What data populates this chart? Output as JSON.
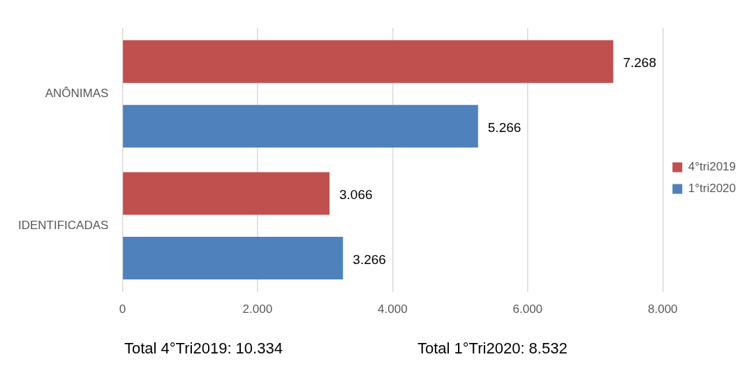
{
  "chart_data": {
    "type": "bar",
    "orientation": "horizontal",
    "categories": [
      "ANÔNIMAS",
      "IDENTIFICADAS"
    ],
    "series": [
      {
        "name": "4°tri2019",
        "color": "#c0504d",
        "values": [
          7268,
          3066
        ],
        "value_labels": [
          "7.268",
          "3.066"
        ]
      },
      {
        "name": "1°tri2020",
        "color": "#4f81bd",
        "values": [
          5266,
          3266
        ],
        "value_labels": [
          "5.266",
          "3.266"
        ]
      }
    ],
    "xlim": [
      0,
      8000
    ],
    "xticks": [
      0,
      {
        "value": 2000,
        "label": "2.000"
      },
      {
        "value": 4000,
        "label": "4.000"
      },
      {
        "value": 6000,
        "label": "6.000"
      },
      {
        "value": 8000,
        "label": "8.000"
      }
    ],
    "grid": "x",
    "legend": "right",
    "annotations": [
      "Total 4°Tri2019: 10.334",
      "Total 1°Tri2020: 8.532"
    ]
  }
}
